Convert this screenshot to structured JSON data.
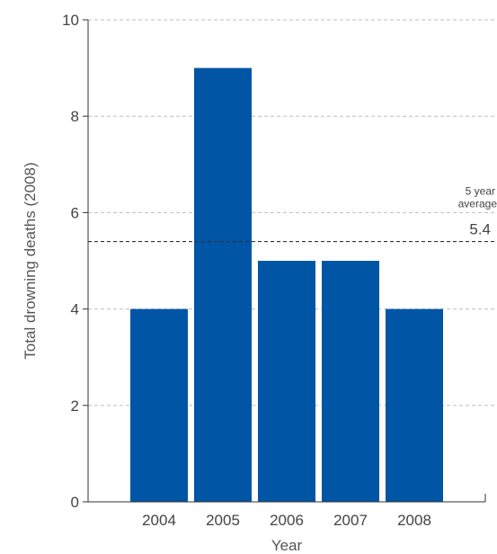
{
  "chart_data": {
    "type": "bar",
    "title": "",
    "xlabel": "Year",
    "ylabel": "Total drowning deaths (2008)",
    "categories": [
      "2004",
      "2005",
      "2006",
      "2007",
      "2008"
    ],
    "values": [
      4,
      9,
      5,
      5,
      4
    ],
    "ylim": [
      0,
      10
    ],
    "yticks": [
      0,
      2,
      4,
      6,
      8,
      10
    ],
    "grid": true,
    "bar_color": "#0055a5",
    "reference_line": {
      "value": 5.4,
      "label_line1": "5 year",
      "label_line2": "average",
      "value_label": "5.4"
    }
  }
}
